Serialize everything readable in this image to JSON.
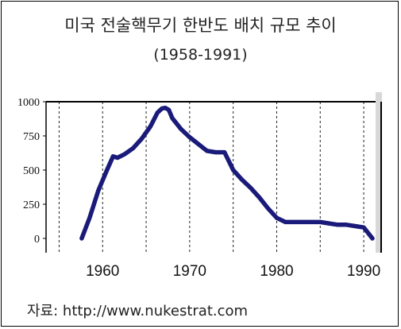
{
  "header": {
    "title": "미국  전술핵무기 한반도 배치 규모 추이",
    "subtitle": "(1958-1991)"
  },
  "footer": {
    "source": "자료: http://www.nukestrat.com"
  },
  "colors": {
    "line": "#1a1a7a",
    "grid": "#222222",
    "axis": "#000000"
  },
  "chart_data": {
    "type": "line",
    "title": "미국  전술핵무기 한반도 배치 규모 추이",
    "subtitle": "(1958-1991)",
    "xlabel": "",
    "ylabel": "",
    "xlim": [
      1953.5,
      1992
    ],
    "ylim": [
      0,
      1000
    ],
    "x_ticks": [
      1960,
      1970,
      1980,
      1990
    ],
    "x_tick_labels": [
      "1960",
      "1970",
      "1980",
      "1990"
    ],
    "y_ticks": [
      0,
      250,
      500,
      750,
      1000
    ],
    "y_tick_labels": [
      "0",
      "250",
      "500",
      "750",
      "1000"
    ],
    "grid": "vertical dotted",
    "legend": "none",
    "series": [
      {
        "x": [
          1957.6,
          1958.5,
          1959.5,
          1960.5,
          1961.2,
          1961.7,
          1962.5,
          1963.5,
          1964.5,
          1965.5,
          1966.3,
          1966.8,
          1967.2,
          1967.6,
          1968.0,
          1969.0,
          1970.0,
          1971.0,
          1972.0,
          1973.0,
          1974.0,
          1975.0,
          1976.0,
          1977.0,
          1978.0,
          1979.0,
          1980.0,
          1981.0,
          1982.0,
          1983.0,
          1984.0,
          1985.0,
          1986.0,
          1987.0,
          1988.0,
          1989.0,
          1990.0,
          1991.0
        ],
        "y": [
          0,
          150,
          350,
          500,
          600,
          590,
          615,
          660,
          730,
          820,
          920,
          950,
          955,
          940,
          880,
          800,
          740,
          690,
          640,
          630,
          630,
          500,
          430,
          370,
          300,
          220,
          150,
          120,
          120,
          120,
          120,
          120,
          110,
          100,
          100,
          90,
          80,
          0
        ]
      }
    ]
  }
}
